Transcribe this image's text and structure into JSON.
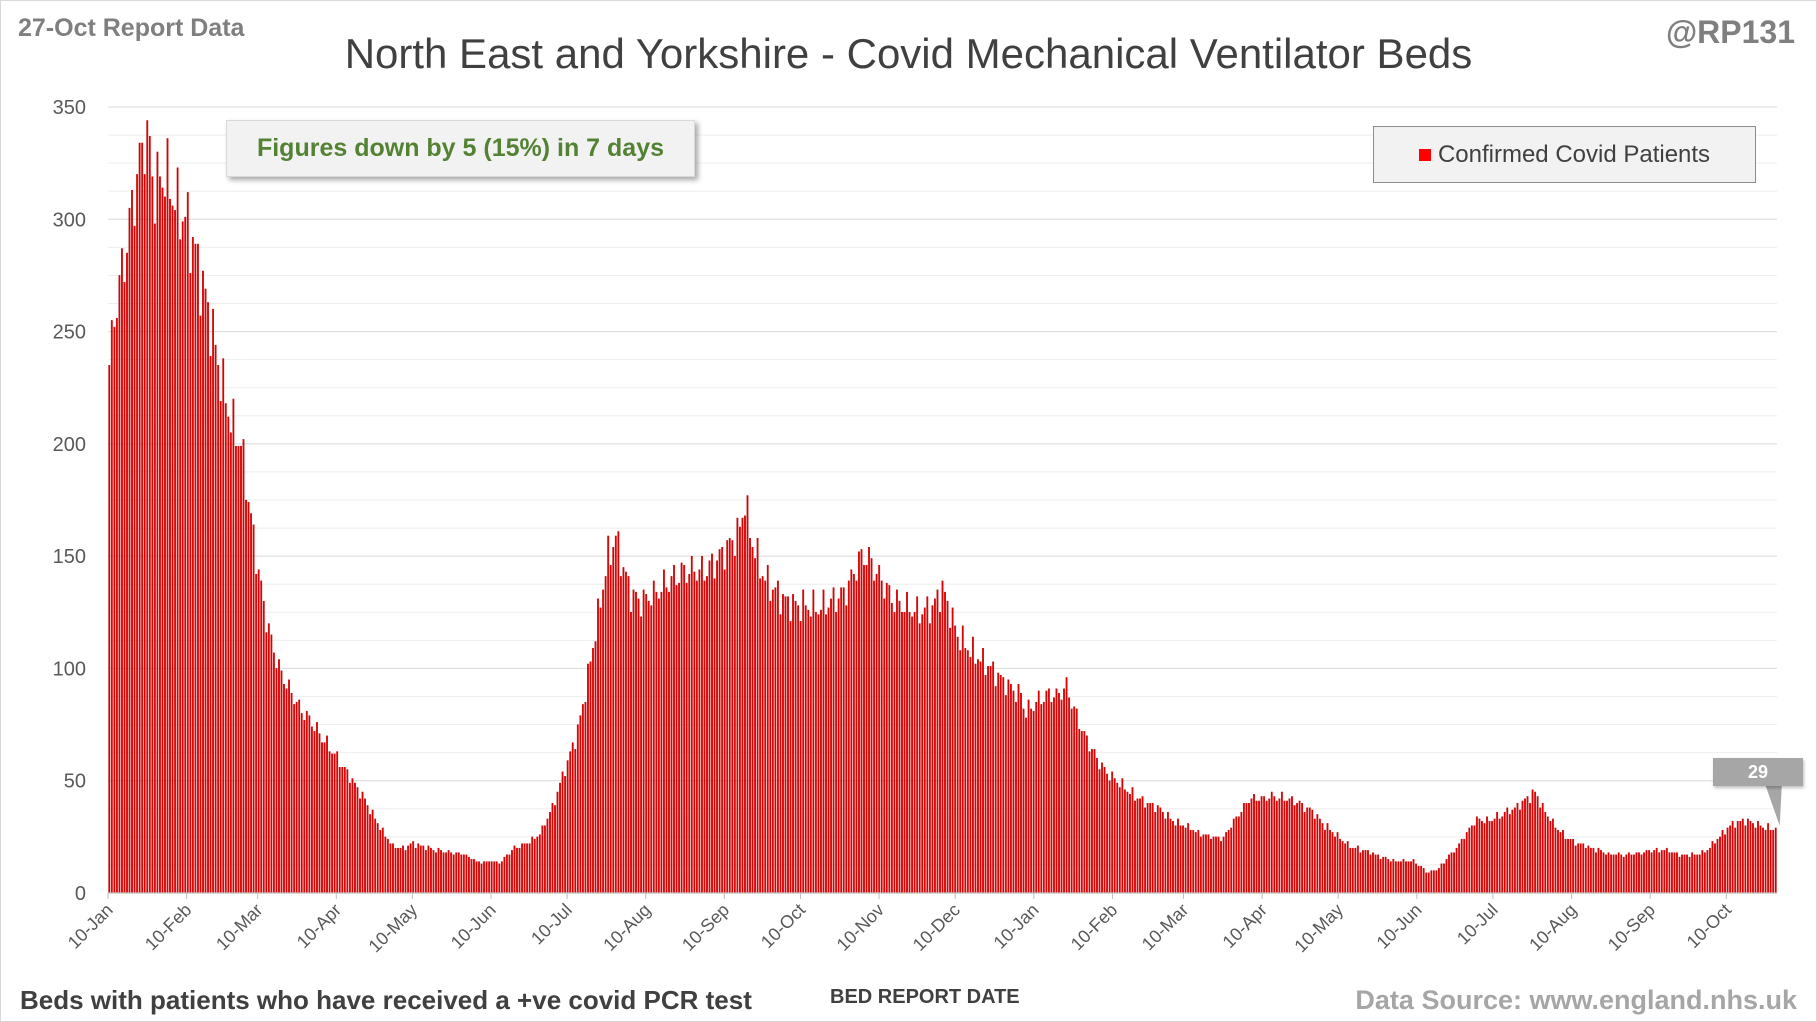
{
  "report_label": "27-Oct Report Data",
  "handle": "@RP131",
  "callout": "Figures down by 5 (15%) in 7 days",
  "footer": {
    "note": "Beds with patients who have received a +ve covid PCR test",
    "source": "Data Source: www.england.nhs.uk"
  },
  "colors": {
    "bar": "#c00000",
    "bar_fill": "#e00000",
    "grid": "#d9d9d9",
    "legend_swatch": "#ff0000"
  },
  "chart_data": {
    "type": "bar",
    "title": "North East and Yorkshire - Covid Mechanical Ventilator Beds",
    "xlabel": "BED REPORT DATE",
    "ylabel": "",
    "ylim": [
      0,
      350
    ],
    "yticks": [
      0,
      50,
      100,
      150,
      200,
      250,
      300,
      350
    ],
    "series_name": "Confirmed Covid Patients",
    "start_date": "10-Jan",
    "x_tick_labels": [
      "10-Jan",
      "10-Feb",
      "10-Mar",
      "10-Apr",
      "10-May",
      "10-Jun",
      "10-Jul",
      "10-Aug",
      "10-Sep",
      "10-Oct",
      "10-Nov",
      "10-Dec",
      "10-Jan",
      "10-Feb",
      "10-Mar",
      "10-Apr",
      "10-May",
      "10-Jun",
      "10-Jul",
      "10-Aug",
      "10-Sep",
      "10-Oct"
    ],
    "x_tick_day_offsets": [
      0,
      31,
      59,
      90,
      120,
      151,
      181,
      212,
      243,
      273,
      304,
      334,
      365,
      396,
      424,
      455,
      485,
      516,
      546,
      577,
      608,
      638
    ],
    "last_value_label": "29",
    "anchors": [
      [
        0,
        235
      ],
      [
        3,
        265
      ],
      [
        6,
        282
      ],
      [
        9,
        305
      ],
      [
        12,
        325
      ],
      [
        14,
        338
      ],
      [
        16,
        330
      ],
      [
        18,
        312
      ],
      [
        20,
        318
      ],
      [
        22,
        320
      ],
      [
        25,
        312
      ],
      [
        27,
        305
      ],
      [
        30,
        300
      ],
      [
        33,
        290
      ],
      [
        36,
        275
      ],
      [
        40,
        255
      ],
      [
        44,
        230
      ],
      [
        48,
        210
      ],
      [
        52,
        200
      ],
      [
        55,
        175
      ],
      [
        58,
        150
      ],
      [
        61,
        128
      ],
      [
        64,
        112
      ],
      [
        67,
        100
      ],
      [
        70,
        93
      ],
      [
        75,
        83
      ],
      [
        80,
        76
      ],
      [
        85,
        68
      ],
      [
        90,
        60
      ],
      [
        95,
        52
      ],
      [
        100,
        43
      ],
      [
        104,
        35
      ],
      [
        108,
        27
      ],
      [
        112,
        21
      ],
      [
        116,
        20
      ],
      [
        120,
        22
      ],
      [
        125,
        20
      ],
      [
        130,
        19
      ],
      [
        135,
        18
      ],
      [
        140,
        17
      ],
      [
        145,
        14
      ],
      [
        150,
        14
      ],
      [
        155,
        14
      ],
      [
        160,
        20
      ],
      [
        165,
        22
      ],
      [
        170,
        26
      ],
      [
        175,
        38
      ],
      [
        180,
        55
      ],
      [
        185,
        72
      ],
      [
        188,
        90
      ],
      [
        191,
        110
      ],
      [
        194,
        130
      ],
      [
        197,
        150
      ],
      [
        200,
        158
      ],
      [
        203,
        145
      ],
      [
        206,
        133
      ],
      [
        210,
        130
      ],
      [
        215,
        133
      ],
      [
        220,
        138
      ],
      [
        225,
        142
      ],
      [
        230,
        144
      ],
      [
        235,
        143
      ],
      [
        240,
        148
      ],
      [
        245,
        155
      ],
      [
        249,
        162
      ],
      [
        251,
        175
      ],
      [
        253,
        160
      ],
      [
        257,
        145
      ],
      [
        260,
        138
      ],
      [
        265,
        132
      ],
      [
        270,
        128
      ],
      [
        275,
        128
      ],
      [
        280,
        127
      ],
      [
        285,
        130
      ],
      [
        290,
        133
      ],
      [
        293,
        140
      ],
      [
        296,
        148
      ],
      [
        299,
        150
      ],
      [
        302,
        145
      ],
      [
        306,
        137
      ],
      [
        310,
        130
      ],
      [
        315,
        127
      ],
      [
        320,
        125
      ],
      [
        325,
        127
      ],
      [
        329,
        135
      ],
      [
        332,
        125
      ],
      [
        335,
        115
      ],
      [
        340,
        108
      ],
      [
        345,
        103
      ],
      [
        350,
        98
      ],
      [
        355,
        92
      ],
      [
        360,
        88
      ],
      [
        362,
        80
      ],
      [
        366,
        85
      ],
      [
        370,
        88
      ],
      [
        375,
        88
      ],
      [
        378,
        92
      ],
      [
        380,
        85
      ],
      [
        385,
        70
      ],
      [
        390,
        60
      ],
      [
        395,
        52
      ],
      [
        400,
        48
      ],
      [
        405,
        43
      ],
      [
        410,
        40
      ],
      [
        415,
        37
      ],
      [
        420,
        32
      ],
      [
        425,
        30
      ],
      [
        430,
        27
      ],
      [
        435,
        25
      ],
      [
        440,
        24
      ],
      [
        443,
        30
      ],
      [
        447,
        37
      ],
      [
        450,
        42
      ],
      [
        455,
        42
      ],
      [
        460,
        43
      ],
      [
        465,
        42
      ],
      [
        470,
        40
      ],
      [
        475,
        36
      ],
      [
        480,
        30
      ],
      [
        485,
        25
      ],
      [
        490,
        21
      ],
      [
        495,
        19
      ],
      [
        500,
        17
      ],
      [
        505,
        15
      ],
      [
        510,
        14
      ],
      [
        515,
        14
      ],
      [
        518,
        12
      ],
      [
        520,
        9
      ],
      [
        524,
        10
      ],
      [
        528,
        15
      ],
      [
        532,
        20
      ],
      [
        536,
        27
      ],
      [
        540,
        33
      ],
      [
        545,
        32
      ],
      [
        550,
        35
      ],
      [
        555,
        38
      ],
      [
        560,
        42
      ],
      [
        563,
        45
      ],
      [
        566,
        38
      ],
      [
        570,
        31
      ],
      [
        575,
        25
      ],
      [
        580,
        22
      ],
      [
        585,
        20
      ],
      [
        590,
        18
      ],
      [
        595,
        17
      ],
      [
        600,
        17
      ],
      [
        605,
        18
      ],
      [
        610,
        19
      ],
      [
        615,
        19
      ],
      [
        620,
        17
      ],
      [
        625,
        17
      ],
      [
        630,
        18
      ],
      [
        635,
        24
      ],
      [
        640,
        30
      ],
      [
        645,
        32
      ],
      [
        650,
        31
      ],
      [
        655,
        29
      ],
      [
        658,
        29
      ]
    ]
  }
}
